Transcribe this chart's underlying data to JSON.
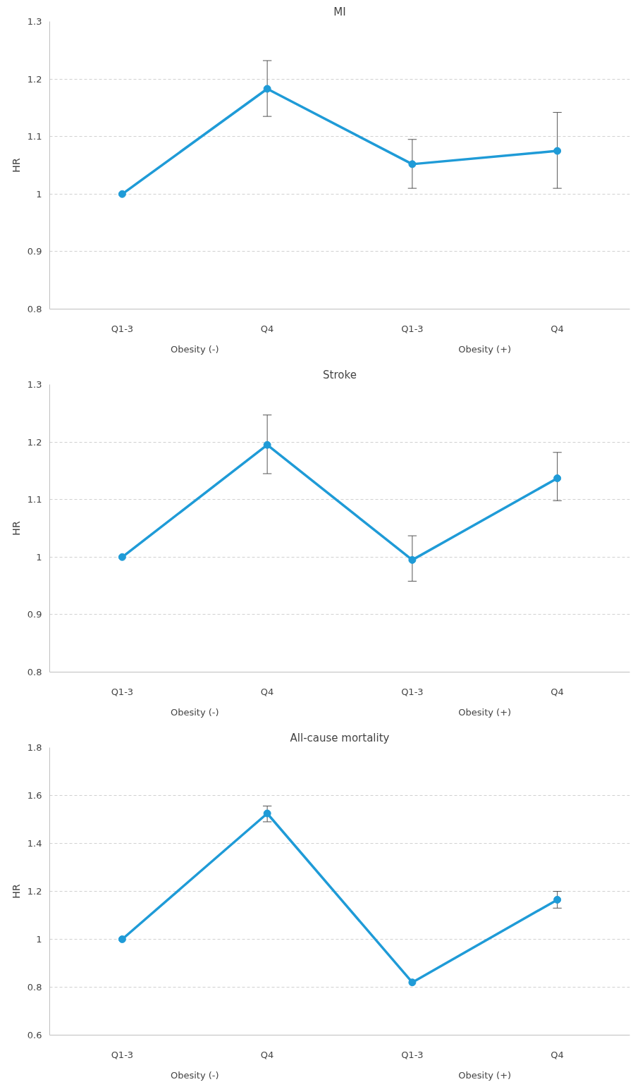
{
  "chart_data": [
    {
      "type": "line",
      "title": "MI",
      "ylabel": "HR",
      "categories": [
        "Q1-3",
        "Q4",
        "Q1-3",
        "Q4"
      ],
      "annotations": [
        "Obesity (-)",
        "Obesity (+)"
      ],
      "series": [
        {
          "color": "#1f9bd7",
          "values": [
            1,
            1.183,
            1.052,
            1.075
          ],
          "errors": [
            null,
            [
              1.135,
              1.232
            ],
            [
              1.01,
              1.095
            ],
            [
              1.01,
              1.142
            ]
          ]
        }
      ],
      "ylim": [
        0.8,
        1.3
      ],
      "yticks": [
        0.8,
        0.9,
        1,
        1.1,
        1.2,
        1.3
      ],
      "grid": "y",
      "marker": "circle",
      "line_style": "solid"
    },
    {
      "type": "line",
      "title": "Stroke",
      "ylabel": "HR",
      "categories": [
        "Q1-3",
        "Q4",
        "Q1-3",
        "Q4"
      ],
      "annotations": [
        "Obesity (-)",
        "Obesity (+)"
      ],
      "series": [
        {
          "color": "#1f9bd7",
          "values": [
            1,
            1.195,
            0.995,
            1.137
          ],
          "errors": [
            null,
            [
              1.145,
              1.247
            ],
            [
              0.958,
              1.037
            ],
            [
              1.098,
              1.182
            ]
          ]
        }
      ],
      "ylim": [
        0.8,
        1.3
      ],
      "yticks": [
        0.8,
        0.9,
        1,
        1.1,
        1.2,
        1.3
      ],
      "grid": "y",
      "marker": "circle",
      "line_style": "solid"
    },
    {
      "type": "line",
      "title": "All-cause mortality",
      "ylabel": "HR",
      "categories": [
        "Q1-3",
        "Q4",
        "Q1-3",
        "Q4"
      ],
      "annotations": [
        "Obesity (-)",
        "Obesity (+)"
      ],
      "series": [
        {
          "color": "#1f9bd7",
          "values": [
            1,
            1.525,
            0.82,
            1.165
          ],
          "errors": [
            null,
            [
              1.49,
              1.556
            ],
            null,
            [
              1.13,
              1.2
            ]
          ]
        }
      ],
      "ylim": [
        0.6,
        1.8
      ],
      "yticks": [
        0.6,
        0.8,
        1,
        1.2,
        1.4,
        1.6,
        1.8
      ],
      "grid": "y",
      "marker": "circle",
      "line_style": "solid"
    }
  ]
}
